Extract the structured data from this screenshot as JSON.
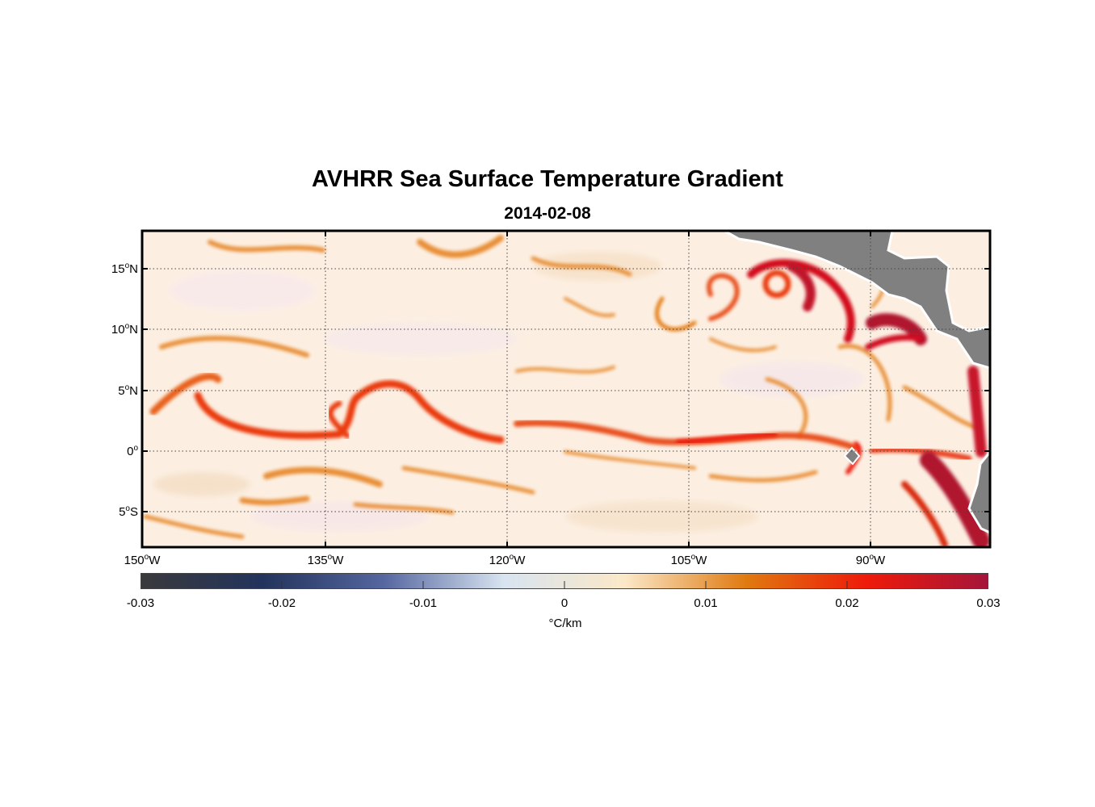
{
  "title": "AVHRR Sea Surface Temperature Gradient",
  "subtitle": "2014-02-08",
  "map": {
    "region": "Eastern Tropical Pacific",
    "lon_range": [
      -150,
      -80
    ],
    "lat_range": [
      -8,
      18
    ],
    "lat_ticks": [
      {
        "deg": "15",
        "hemi": "N",
        "value": 15
      },
      {
        "deg": "10",
        "hemi": "N",
        "value": 10
      },
      {
        "deg": "5",
        "hemi": "N",
        "value": 5
      },
      {
        "deg": "0",
        "hemi": "",
        "value": 0
      },
      {
        "deg": "5",
        "hemi": "S",
        "value": -5
      }
    ],
    "lon_ticks": [
      {
        "deg": "150",
        "hemi": "W",
        "value": -150
      },
      {
        "deg": "135",
        "hemi": "W",
        "value": -135
      },
      {
        "deg": "120",
        "hemi": "W",
        "value": -120
      },
      {
        "deg": "105",
        "hemi": "W",
        "value": -105
      },
      {
        "deg": "90",
        "hemi": "W",
        "value": -90
      }
    ],
    "grid": "dotted",
    "land_color": "#808080",
    "background_color": "#fbeee0"
  },
  "colorbar": {
    "ticks": [
      "-0.03",
      "-0.02",
      "-0.01",
      "0",
      "0.01",
      "0.02",
      "0.03"
    ],
    "range": [
      -0.03,
      0.03
    ],
    "unit": "°C/km",
    "colors": [
      "#3a3a3c",
      "#22335c",
      "#5566a0",
      "#d8e4f0",
      "#fbe8c8",
      "#e07a10",
      "#ee1a0a",
      "#a5153a"
    ]
  }
}
